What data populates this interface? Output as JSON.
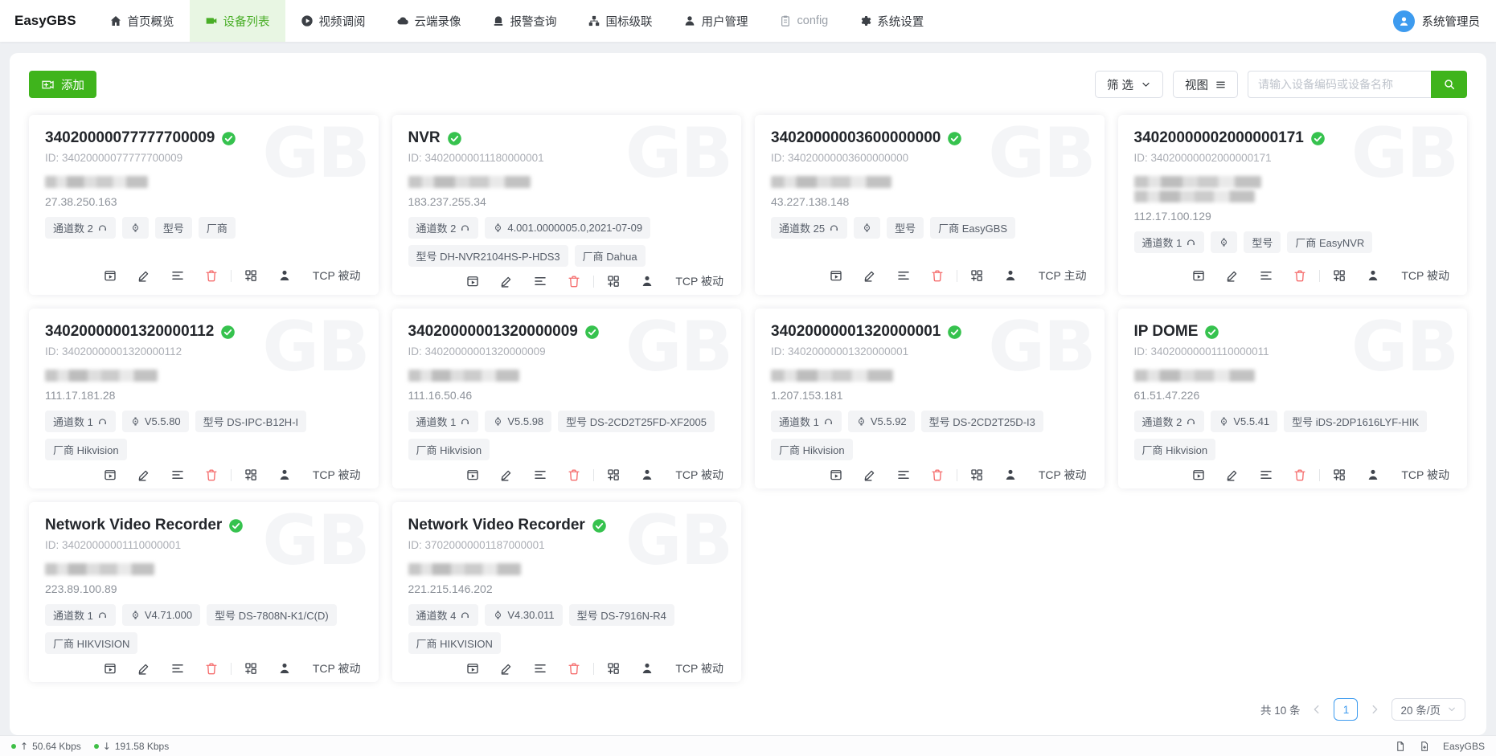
{
  "nav": {
    "brand": "EasyGBS",
    "items": [
      {
        "key": "overview",
        "label": "首页概览",
        "icon": "home-icon",
        "active": false,
        "muted": false
      },
      {
        "key": "devices",
        "label": "设备列表",
        "icon": "device-list-icon",
        "active": true,
        "muted": false
      },
      {
        "key": "video-review",
        "label": "视频调阅",
        "icon": "video-play-icon",
        "active": false,
        "muted": false
      },
      {
        "key": "cloud-record",
        "label": "云端录像",
        "icon": "cloud-icon",
        "active": false,
        "muted": false
      },
      {
        "key": "alarm-query",
        "label": "报警查询",
        "icon": "alarm-icon",
        "active": false,
        "muted": false
      },
      {
        "key": "cascade",
        "label": "国标级联",
        "icon": "cascade-icon",
        "active": false,
        "muted": false
      },
      {
        "key": "user-management",
        "label": "用户管理",
        "icon": "user-icon",
        "active": false,
        "muted": false
      },
      {
        "key": "config",
        "label": "config",
        "icon": "config-icon",
        "active": false,
        "muted": true
      },
      {
        "key": "system-settings",
        "label": "系统设置",
        "icon": "gear-icon",
        "active": false,
        "muted": false
      }
    ],
    "user": "系统管理员"
  },
  "toolbar": {
    "add_label": "添加",
    "filter_label": "筛 选",
    "view_label": "视图",
    "search_placeholder": "请输入设备编码或设备名称"
  },
  "watermark": "GB",
  "cards": [
    {
      "name": "34020000077777700009",
      "id": "ID: 34020000077777700009",
      "ip": "27.38.250.163",
      "channels": "通道数 2",
      "version": "",
      "model": "型号",
      "vendor": "厂商",
      "mode": "TCP 被动",
      "mask_lines": 1
    },
    {
      "name": "NVR",
      "id": "ID: 34020000011180000001",
      "ip": "183.237.255.34",
      "channels": "通道数 2",
      "version": "4.001.0000005.0,2021-07-09",
      "model": "型号 DH-NVR2104HS-P-HDS3",
      "vendor": "厂商 Dahua",
      "mode": "TCP 被动",
      "mask_lines": 1
    },
    {
      "name": "34020000003600000000",
      "id": "ID: 34020000003600000000",
      "ip": "43.227.138.148",
      "channels": "通道数 25",
      "version": "",
      "model": "型号",
      "vendor": "厂商 EasyGBS",
      "mode": "TCP 主动",
      "mask_lines": 1
    },
    {
      "name": "34020000002000000171",
      "id": "ID: 34020000002000000171",
      "ip": "112.17.100.129",
      "channels": "通道数 1",
      "version": "",
      "model": "型号",
      "vendor": "厂商 EasyNVR",
      "mode": "TCP 被动",
      "mask_lines": 2
    },
    {
      "name": "34020000001320000112",
      "id": "ID: 34020000001320000112",
      "ip": "111.17.181.28",
      "channels": "通道数 1",
      "version": "V5.5.80",
      "model": "型号 DS-IPC-B12H-I",
      "vendor": "厂商 Hikvision",
      "mode": "TCP 被动",
      "mask_lines": 1
    },
    {
      "name": "34020000001320000009",
      "id": "ID: 34020000001320000009",
      "ip": "111.16.50.46",
      "channels": "通道数 1",
      "version": "V5.5.98",
      "model": "型号 DS-2CD2T25FD-XF2005",
      "vendor": "厂商 Hikvision",
      "mode": "TCP 被动",
      "mask_lines": 1
    },
    {
      "name": "34020000001320000001",
      "id": "ID: 34020000001320000001",
      "ip": "1.207.153.181",
      "channels": "通道数 1",
      "version": "V5.5.92",
      "model": "型号 DS-2CD2T25D-I3",
      "vendor": "厂商 Hikvision",
      "mode": "TCP 被动",
      "mask_lines": 1
    },
    {
      "name": "IP DOME",
      "id": "ID: 34020000001110000011",
      "ip": "61.51.47.226",
      "channels": "通道数 2",
      "version": "V5.5.41",
      "model": "型号 iDS-2DP1616LYF-HIK",
      "vendor": "厂商 Hikvision",
      "mode": "TCP 被动",
      "mask_lines": 1
    },
    {
      "name": "Network Video Recorder",
      "id": "ID: 34020000001110000001",
      "ip": "223.89.100.89",
      "channels": "通道数 1",
      "version": "V4.71.000",
      "model": "型号 DS-7808N-K1/C(D)",
      "vendor": "厂商 HIKVISION",
      "mode": "TCP 被动",
      "mask_lines": 1
    },
    {
      "name": "Network Video Recorder",
      "id": "ID: 37020000001187000001",
      "ip": "221.215.146.202",
      "channels": "通道数 4",
      "version": "V4.30.011",
      "model": "型号 DS-7916N-R4",
      "vendor": "厂商 HIKVISION",
      "mode": "TCP 被动",
      "mask_lines": 1
    }
  ],
  "pagination": {
    "total": "共 10 条",
    "page": "1",
    "page_size": "20 条/页"
  },
  "footer": {
    "up": "50.64 Kbps",
    "down": "191.58 Kbps",
    "brand": "EasyGBS"
  },
  "colors": {
    "accent_green": "#3fb41c",
    "nav_active_bg": "#e8f6e3",
    "nav_active_text": "#49ae27",
    "check_green": "#36c24e",
    "pager_blue": "#3d9bef",
    "danger_red": "#f56c6c"
  }
}
